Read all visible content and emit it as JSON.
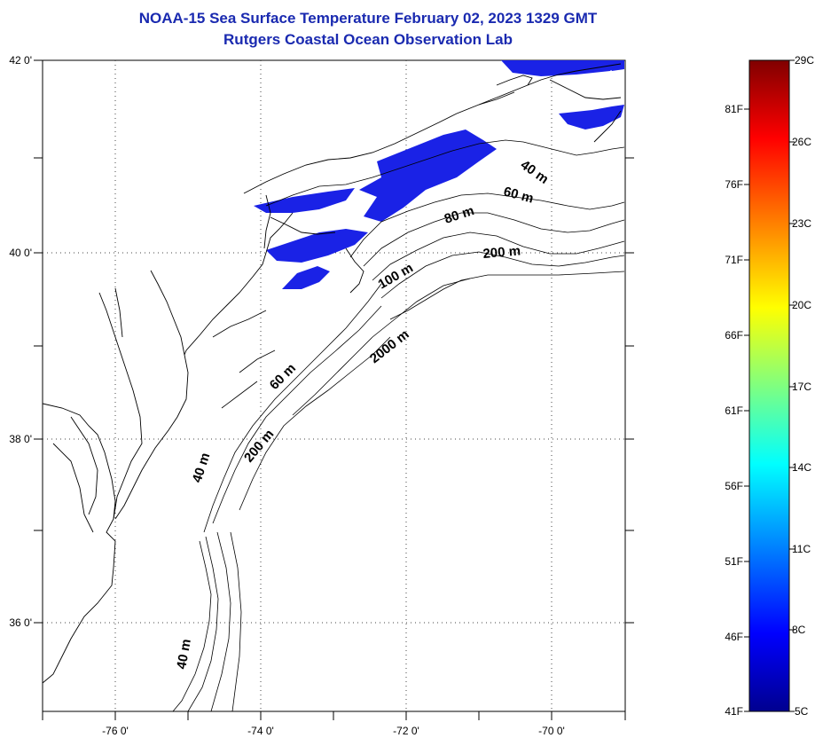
{
  "title_line1": "NOAA-15 Sea Surface Temperature February 02, 2023 1329 GMT",
  "title_line2": "Rutgers Coastal Ocean Observation Lab",
  "map": {
    "lon_range": [
      -77,
      -69
    ],
    "lat_range": [
      35,
      42
    ],
    "lat_labels": [
      {
        "text": "42 0'"
      },
      {
        "text": "40 0'"
      },
      {
        "text": "38 0'"
      },
      {
        "text": "36 0'"
      }
    ],
    "lon_labels": [
      {
        "text": "-76 0'"
      },
      {
        "text": "-74 0'"
      },
      {
        "text": "-72 0'"
      },
      {
        "text": "-70 0'"
      }
    ],
    "contour_labels": [
      {
        "text": "40 m"
      },
      {
        "text": "60 m"
      },
      {
        "text": "80 m"
      },
      {
        "text": "200 m"
      },
      {
        "text": "100 m"
      },
      {
        "text": "2000 m"
      },
      {
        "text": "60 m"
      },
      {
        "text": "200 m"
      },
      {
        "text": "40 m"
      },
      {
        "text": "40 m"
      }
    ],
    "coastline_color": "#000000",
    "sst_color": "#1a22e6"
  },
  "colorbar": {
    "celsius_labels": [
      "29C",
      "26C",
      "23C",
      "20C",
      "17C",
      "14C",
      "11C",
      "8C",
      "5C"
    ],
    "fahrenheit_labels": [
      "81F",
      "76F",
      "71F",
      "66F",
      "61F",
      "56F",
      "51F",
      "46F",
      "41F"
    ],
    "celsius_range": [
      5,
      29
    ],
    "colors": [
      "#00008f",
      "#0000ff",
      "#00ffff",
      "#ffff00",
      "#ff0000",
      "#800000"
    ]
  }
}
